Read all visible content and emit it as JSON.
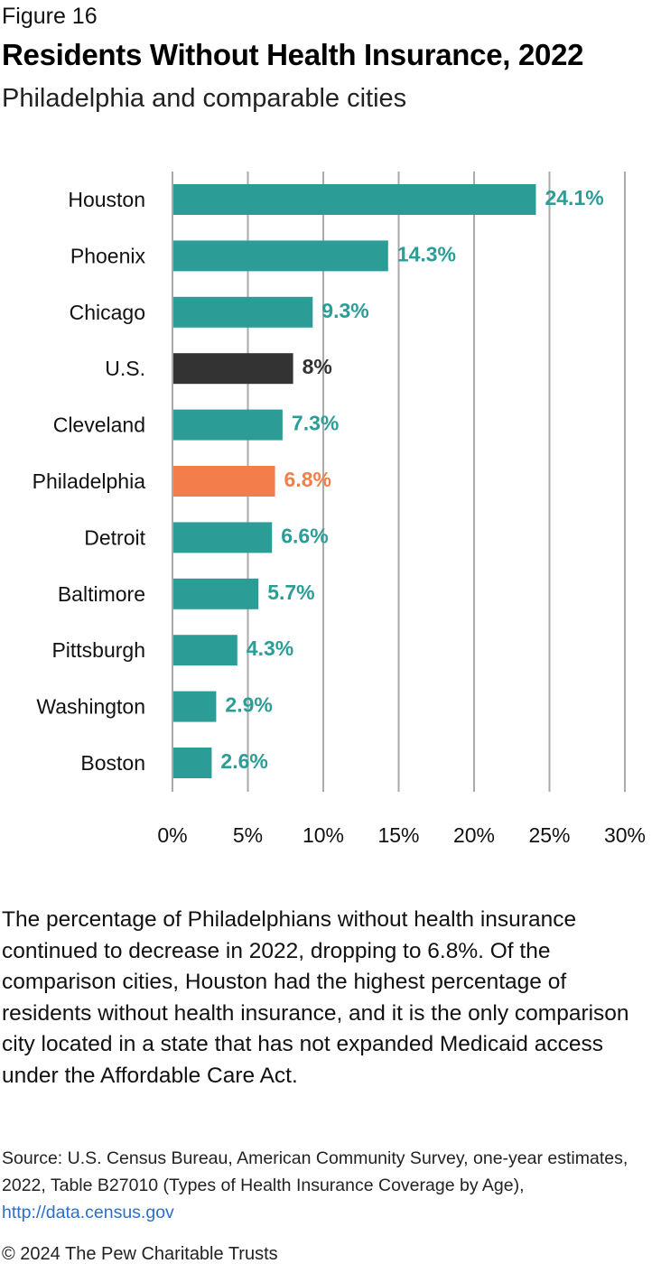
{
  "figure_label": "Figure 16",
  "title": "Residents Without Health Insurance, 2022",
  "subtitle": "Philadelphia and comparable cities",
  "chart_data": {
    "type": "bar",
    "orientation": "horizontal",
    "title": "Residents Without Health Insurance, 2022",
    "subtitle": "Philadelphia and comparable cities",
    "xlabel": "",
    "ylabel": "",
    "xlim": [
      0,
      30
    ],
    "x_ticks": [
      0,
      5,
      10,
      15,
      20,
      25,
      30
    ],
    "x_tick_labels": [
      "0%",
      "5%",
      "10%",
      "15%",
      "20%",
      "25%",
      "30%"
    ],
    "grid": "vertical",
    "legend": "none",
    "categories": [
      "Houston",
      "Phoenix",
      "Chicago",
      "U.S.",
      "Cleveland",
      "Philadelphia",
      "Detroit",
      "Baltimore",
      "Pittsburgh",
      "Washington",
      "Boston"
    ],
    "values": [
      24.1,
      14.3,
      9.3,
      8,
      7.3,
      6.8,
      6.6,
      5.7,
      4.3,
      2.9,
      2.6
    ],
    "value_labels": [
      "24.1%",
      "14.3%",
      "9.3%",
      "8%",
      "7.3%",
      "6.8%",
      "6.6%",
      "5.7%",
      "4.3%",
      "2.9%",
      "2.6%"
    ],
    "highlight": {
      "U.S.": "national",
      "Philadelphia": "focus"
    }
  },
  "colors": {
    "default_bar": "#2b9d96",
    "us_bar": "#333333",
    "philadelphia_bar": "#f47e4b",
    "gridline": "#aaaaaa"
  },
  "caption": "The percentage of Philadelphians without health insurance continued to decrease in 2022, dropping to 6.8%. Of the comparison cities, Houston had the highest percentage of residents without health insurance, and it is the only comparison city located in a state that has not expanded Medicaid access under the Affordable Care Act.",
  "source": {
    "text": "Source: U.S. Census Bureau, American Community Survey, one-year estimates, 2022, Table B27010 (Types of Health Insurance Coverage by Age), ",
    "link_text": "http://data.census.gov"
  },
  "copyright": "© 2024 The Pew Charitable Trusts"
}
